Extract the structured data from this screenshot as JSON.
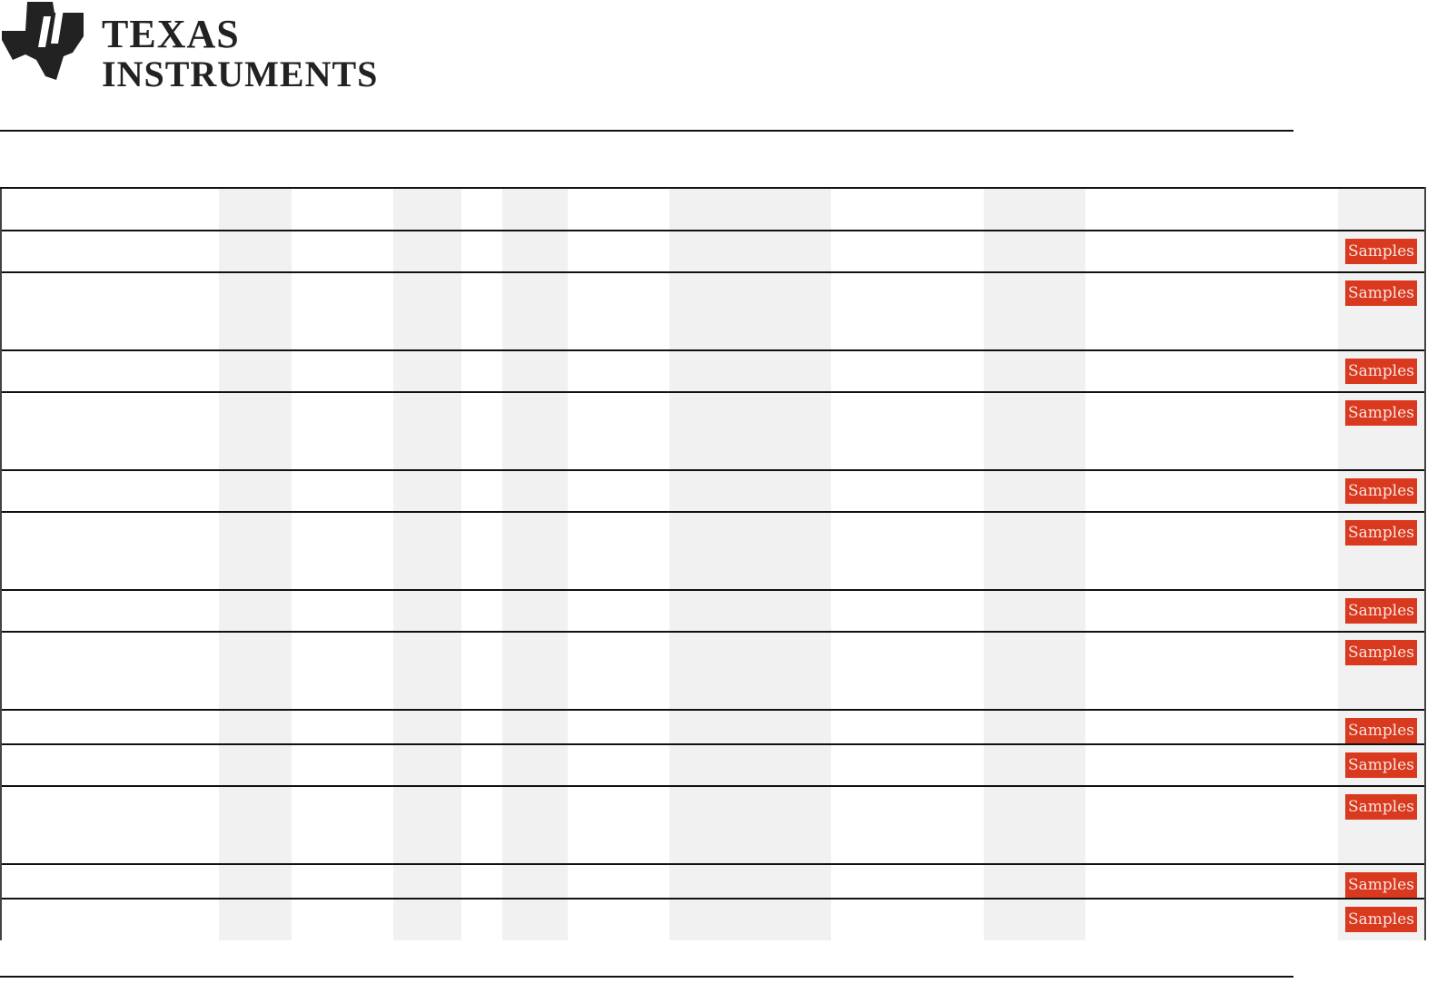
{
  "logo": {
    "line1": "TEXAS",
    "line2": "INSTRUMENTS"
  },
  "table": {
    "columns": 12,
    "rows": [
      {
        "height": "header",
        "button": null
      },
      {
        "button": "Samples"
      },
      {
        "button": "Samples"
      },
      {
        "button": "Samples"
      },
      {
        "button": "Samples"
      },
      {
        "button": "Samples"
      },
      {
        "button": "Samples"
      },
      {
        "button": "Samples"
      },
      {
        "button": "Samples"
      },
      {
        "button": "Samples"
      },
      {
        "button": "Samples"
      },
      {
        "button": "Samples"
      },
      {
        "button": "Samples"
      },
      {
        "button": "Samples"
      }
    ]
  },
  "colors": {
    "button": "#d9391f",
    "shaded_column": "#f1f1f1"
  }
}
